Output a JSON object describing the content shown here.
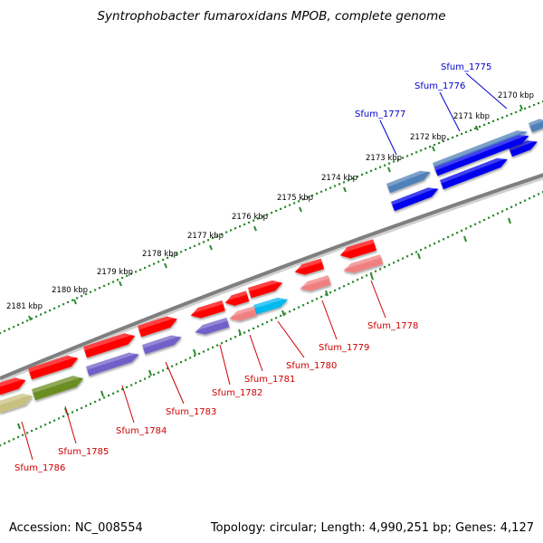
{
  "title": "Syntrophobacter fumaroxidans MPOB, complete genome",
  "accession": "Accession: NC_008554",
  "topology": "Topology: circular; Length: 4,990,251 bp; Genes: 4,127",
  "ticks": [
    "2170 kbp",
    "2171 kbp",
    "2172 kbp",
    "2173 kbp",
    "2174 kbp",
    "2175 kbp",
    "2176 kbp",
    "2177 kbp",
    "2178 kbp",
    "2179 kbp",
    "2180 kbp",
    "2181 kbp"
  ],
  "labels_top": [
    "Sfum_1775",
    "Sfum_1776",
    "Sfum_1777"
  ],
  "labels_bottom": [
    "Sfum_1778",
    "Sfum_1779",
    "Sfum_1780",
    "Sfum_1781",
    "Sfum_1782",
    "Sfum_1783",
    "Sfum_1784",
    "Sfum_1785",
    "Sfum_1786"
  ],
  "colors": {
    "cds_red": "#ff0000",
    "cog_blue": "#0000ee",
    "cog_steel": "#4f80b8",
    "cog_pink": "#f08080",
    "cog_cyan": "#00b8f0",
    "cog_purple": "#7060c8",
    "cog_olive": "#6b8e23",
    "cog_khaki": "#c8c080",
    "backbone": "#808080",
    "tick_green": "#2e8b2e"
  }
}
